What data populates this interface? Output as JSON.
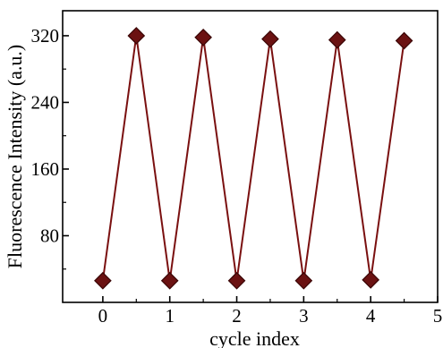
{
  "chart_data": {
    "type": "line",
    "title": "",
    "xlabel": "cycle index",
    "ylabel": "Fluorescence Intensity (a.u.)",
    "xlim": [
      -0.6,
      5
    ],
    "ylim": [
      0,
      350
    ],
    "xticks": [
      0,
      1,
      2,
      3,
      4,
      5
    ],
    "yticks": [
      80,
      160,
      240,
      320
    ],
    "grid": false,
    "legend": "none",
    "marker": "diamond",
    "line_color": "#7a1010",
    "marker_color": "#6b1212",
    "series": [
      {
        "x": [
          0,
          0.5,
          1,
          1.5,
          2,
          2.5,
          3,
          3.5,
          4,
          4.5
        ],
        "values": [
          26,
          320,
          26,
          318,
          26,
          316,
          26,
          315,
          27,
          314
        ]
      }
    ]
  }
}
